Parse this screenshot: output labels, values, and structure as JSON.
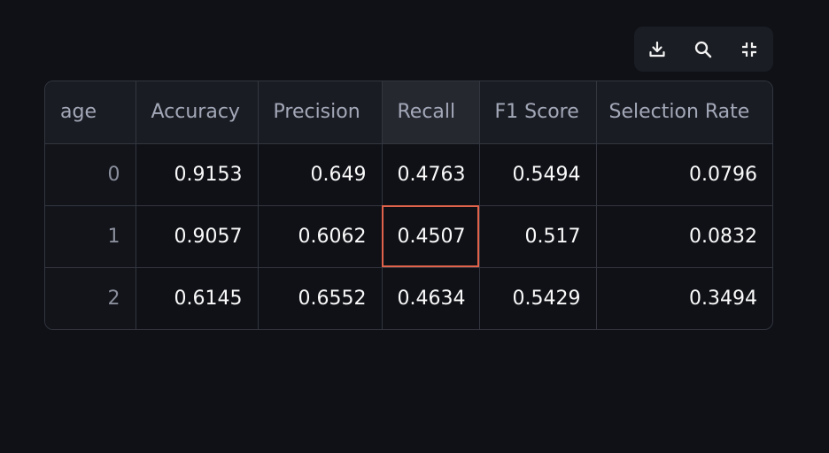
{
  "toolbar": {
    "buttons": [
      {
        "icon": "download-icon",
        "tooltip": ""
      },
      {
        "icon": "search-icon",
        "tooltip": ""
      },
      {
        "icon": "fullscreen-exit-icon",
        "tooltip": ""
      }
    ]
  },
  "table": {
    "columns": [
      "age",
      "Accuracy",
      "Precision",
      "Recall",
      "F1 Score",
      "Selection Rate"
    ],
    "rows": [
      {
        "index": "0",
        "accuracy": "0.9153",
        "precision": "0.649",
        "recall": "0.4763",
        "f1": "0.5494",
        "selection_rate": "0.0796"
      },
      {
        "index": "1",
        "accuracy": "0.9057",
        "precision": "0.6062",
        "recall": "0.4507",
        "f1": "0.517",
        "selection_rate": "0.0832"
      },
      {
        "index": "2",
        "accuracy": "0.6145",
        "precision": "0.6552",
        "recall": "0.4634",
        "f1": "0.5429",
        "selection_rate": "0.3494"
      }
    ],
    "focused_cell": {
      "row": 1,
      "column": "Recall"
    }
  },
  "colors": {
    "background": "#0f1117",
    "header_background": "#1a1c23",
    "border": "#33363f",
    "focus_outline": "#e0624a",
    "text": "#fafafa",
    "muted_text": "#8b8f9c"
  }
}
